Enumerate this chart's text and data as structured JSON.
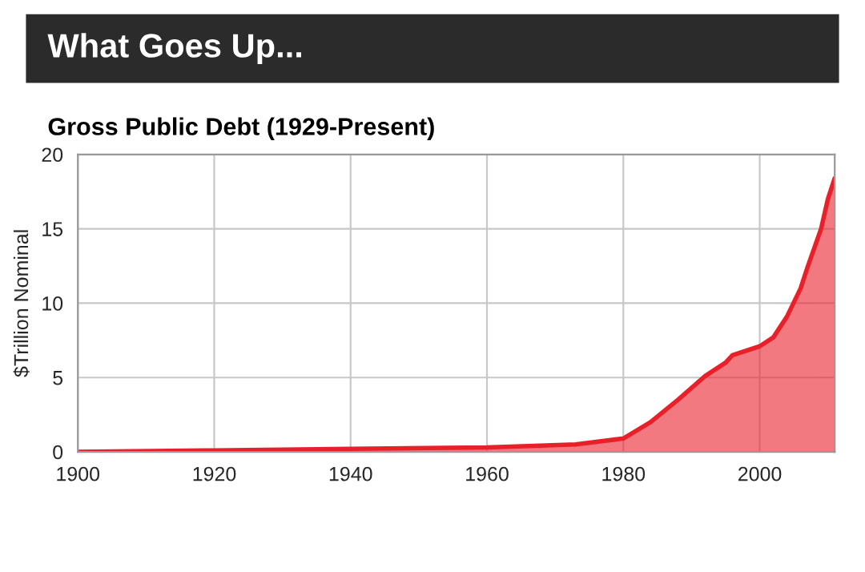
{
  "chart_data": {
    "type": "area",
    "title": "What Goes Up...",
    "subtitle": "Gross Public Debt (1929-Present)",
    "ylabel": "$Trillion Nominal",
    "x": [
      1900,
      1920,
      1940,
      1960,
      1973,
      1980,
      1984,
      1988,
      1992,
      1995,
      1996,
      2000,
      2002,
      2004,
      2006,
      2007,
      2009,
      2010,
      2011
    ],
    "series": [
      {
        "color": "#e8202a",
        "values": [
          0,
          0.1,
          0.2,
          0.3,
          0.5,
          0.9,
          2.0,
          3.5,
          5.1,
          6.0,
          6.5,
          7.1,
          7.7,
          9.1,
          11.0,
          12.4,
          15.0,
          17.0,
          18.4
        ]
      }
    ],
    "xlim": [
      1900,
      2011
    ],
    "xticks": [
      1900,
      1920,
      1940,
      1960,
      1980,
      2000
    ],
    "ylim": [
      0,
      20
    ],
    "yticks": [
      0,
      5,
      10,
      15,
      20
    ],
    "grid": true,
    "legend": false
  }
}
